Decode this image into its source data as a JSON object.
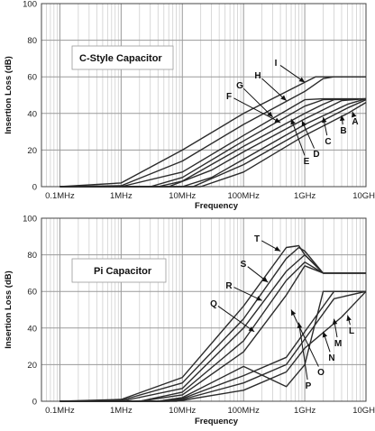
{
  "chart_data": [
    {
      "type": "line",
      "title": "C-Style Capacitor",
      "xlabel": "Frequency",
      "ylabel": "Insertion Loss (dB)",
      "x_scale": "log",
      "x_unit": "Hz",
      "xlim": [
        50000,
        10000000000
      ],
      "ylim": [
        0,
        100
      ],
      "x_tick_labels": [
        "0.1MHz",
        "1MHz",
        "10MHz",
        "100MHz",
        "1GHz",
        "10GHz"
      ],
      "y_tick_labels": [
        "0",
        "20",
        "40",
        "60",
        "80",
        "100"
      ],
      "grid": true,
      "legend": "none",
      "series": [
        {
          "name": "I",
          "x": [
            100000.0,
            1000000.0,
            10000000.0,
            100000000.0,
            1000000000.0,
            1500000000.0,
            2000000000.0,
            10000000000.0
          ],
          "y": [
            0,
            2,
            20,
            40,
            57,
            60,
            60,
            60
          ]
        },
        {
          "name": "H",
          "x": [
            100000.0,
            1000000.0,
            10000000.0,
            100000000.0,
            1000000000.0,
            2000000000.0,
            3000000000.0,
            10000000000.0
          ],
          "y": [
            0,
            0.5,
            14,
            34,
            52,
            59,
            60,
            60
          ]
        },
        {
          "name": "G",
          "x": [
            100000.0,
            1000000.0,
            10000000.0,
            100000000.0,
            1000000000.0,
            2000000000.0,
            3000000000.0,
            10000000000.0
          ],
          "y": [
            0,
            0,
            8,
            28,
            47.5,
            48,
            48,
            48
          ]
        },
        {
          "name": "F",
          "x": [
            100000.0,
            3000000.0,
            10000000.0,
            100000000.0,
            1000000000.0,
            2000000000.0,
            10000000000.0
          ],
          "y": [
            0,
            0,
            5,
            25,
            44,
            47.5,
            48
          ]
        },
        {
          "name": "E",
          "x": [
            100000.0,
            4000000.0,
            10000000.0,
            100000000.0,
            1000000000.0,
            2000000000.0,
            3000000000.0,
            10000000000.0
          ],
          "y": [
            0,
            0,
            3,
            22,
            40,
            45,
            47.5,
            48
          ]
        },
        {
          "name": "D",
          "x": [
            100000.0,
            6000000.0,
            30000000.0,
            100000000.0,
            1000000000.0,
            4000000000.0,
            10000000000.0
          ],
          "y": [
            0,
            0,
            9,
            19,
            37,
            47,
            48
          ]
        },
        {
          "name": "C",
          "x": [
            100000.0,
            10000000.0,
            30000000.0,
            100000000.0,
            1000000000.0,
            5000000000.0,
            10000000000.0
          ],
          "y": [
            0,
            0,
            5,
            15,
            34,
            45,
            48
          ]
        },
        {
          "name": "B",
          "x": [
            100000.0,
            15000000.0,
            100000000.0,
            1000000000.0,
            5000000000.0,
            10000000000.0
          ],
          "y": [
            0,
            0,
            12,
            31,
            43,
            47.5
          ]
        },
        {
          "name": "A",
          "x": [
            100000.0,
            20000000.0,
            100000000.0,
            1000000000.0,
            5000000000.0,
            10000000000.0
          ],
          "y": [
            0,
            0,
            8,
            28,
            40,
            46
          ]
        }
      ],
      "annotations": [
        {
          "text": "I",
          "points_to": {
            "x": 1000000000.0,
            "y": 57
          }
        },
        {
          "text": "H",
          "points_to": {
            "x": 500000000.0,
            "y": 47
          }
        },
        {
          "text": "G",
          "points_to": {
            "x": 300000000.0,
            "y": 38
          }
        },
        {
          "text": "F",
          "points_to": {
            "x": 400000000.0,
            "y": 35
          }
        },
        {
          "text": "E",
          "points_to": {
            "x": 600000000.0,
            "y": 37
          }
        },
        {
          "text": "D",
          "points_to": {
            "x": 900000000.0,
            "y": 36
          }
        },
        {
          "text": "C",
          "points_to": {
            "x": 2000000000.0,
            "y": 38
          }
        },
        {
          "text": "B",
          "points_to": {
            "x": 4000000000.0,
            "y": 39
          }
        },
        {
          "text": "A",
          "points_to": {
            "x": 6000000000.0,
            "y": 41
          }
        }
      ]
    },
    {
      "type": "line",
      "title": "Pi Capacitor",
      "xlabel": "Frequency",
      "ylabel": "Insertion Loss (dB)",
      "x_scale": "log",
      "x_unit": "Hz",
      "xlim": [
        50000,
        10000000000
      ],
      "ylim": [
        0,
        100
      ],
      "x_tick_labels": [
        "0.1MHz",
        "1MHz",
        "10MHz",
        "100MHz",
        "1GHz",
        "10GHz"
      ],
      "y_tick_labels": [
        "0",
        "20",
        "40",
        "60",
        "80",
        "100"
      ],
      "grid": true,
      "legend": "none",
      "series": [
        {
          "name": "T",
          "x": [
            100000.0,
            1000000.0,
            10000000.0,
            100000000.0,
            500000000.0,
            800000000.0,
            1000000000.0,
            2000000000.0,
            10000000000.0
          ],
          "y": [
            0,
            1,
            13,
            52,
            84,
            85,
            80,
            70,
            70
          ]
        },
        {
          "name": "S",
          "x": [
            100000.0,
            1000000.0,
            10000000.0,
            100000000.0,
            500000000.0,
            800000000.0,
            1000000000.0,
            2000000000.0,
            10000000000.0
          ],
          "y": [
            0,
            0.5,
            10,
            45,
            78,
            84,
            82,
            70,
            70
          ]
        },
        {
          "name": "R",
          "x": [
            100000.0,
            1000000.0,
            10000000.0,
            100000000.0,
            500000000.0,
            1000000000.0,
            2000000000.0,
            10000000000.0
          ],
          "y": [
            0,
            0,
            7,
            40,
            71,
            80,
            70,
            70
          ]
        },
        {
          "name": "Q",
          "x": [
            100000.0,
            2000000.0,
            10000000.0,
            100000000.0,
            500000000.0,
            1000000000.0,
            2000000000.0,
            10000000000.0
          ],
          "y": [
            0,
            0,
            5,
            33,
            66,
            76,
            70,
            70
          ]
        },
        {
          "name": "P",
          "x": [
            100000.0,
            2000000.0,
            10000000.0,
            100000000.0,
            500000000.0,
            1000000000.0,
            2000000000.0,
            10000000000.0
          ],
          "y": [
            0,
            0,
            3.5,
            27,
            58,
            74,
            70,
            70
          ]
        },
        {
          "name": "O",
          "x": [
            100000.0,
            4000000.0,
            10000000.0,
            100000000.0,
            500000000.0,
            1000000000.0,
            2000000000.0,
            10000000000.0
          ],
          "y": [
            0,
            0,
            2,
            19,
            8,
            20,
            60,
            60
          ]
        },
        {
          "name": "N",
          "x": [
            100000.0,
            5000000.0,
            10000000.0,
            100000000.0,
            500000000.0,
            1000000000.0,
            3000000000.0,
            10000000000.0
          ],
          "y": [
            0,
            0,
            1.5,
            14,
            24,
            38,
            60,
            60
          ]
        },
        {
          "name": "M",
          "x": [
            100000.0,
            6000000.0,
            10000000.0,
            100000000.0,
            500000000.0,
            1000000000.0,
            3000000000.0,
            10000000000.0
          ],
          "y": [
            0,
            0,
            1,
            10,
            20,
            34,
            56,
            60
          ]
        },
        {
          "name": "L",
          "x": [
            100000.0,
            8000000.0,
            10000000.0,
            100000000.0,
            500000000.0,
            1000000000.0,
            4000000000.0,
            10000000000.0
          ],
          "y": [
            0,
            0,
            0.5,
            6,
            16,
            29,
            46,
            60
          ]
        }
      ],
      "annotations": [
        {
          "text": "T",
          "points_to": {
            "x": 400000000.0,
            "y": 82
          }
        },
        {
          "text": "S",
          "points_to": {
            "x": 250000000.0,
            "y": 65
          }
        },
        {
          "text": "R",
          "points_to": {
            "x": 200000000.0,
            "y": 55
          }
        },
        {
          "text": "Q",
          "points_to": {
            "x": 150000000.0,
            "y": 38
          }
        },
        {
          "text": "P",
          "points_to": {
            "x": 800000000.0,
            "y": 43
          }
        },
        {
          "text": "O",
          "points_to": {
            "x": 600000000.0,
            "y": 50
          }
        },
        {
          "text": "N",
          "points_to": {
            "x": 2000000000.0,
            "y": 38
          }
        },
        {
          "text": "M",
          "points_to": {
            "x": 3000000000.0,
            "y": 45
          }
        },
        {
          "text": "L",
          "points_to": {
            "x": 5000000000.0,
            "y": 47
          }
        }
      ]
    }
  ]
}
